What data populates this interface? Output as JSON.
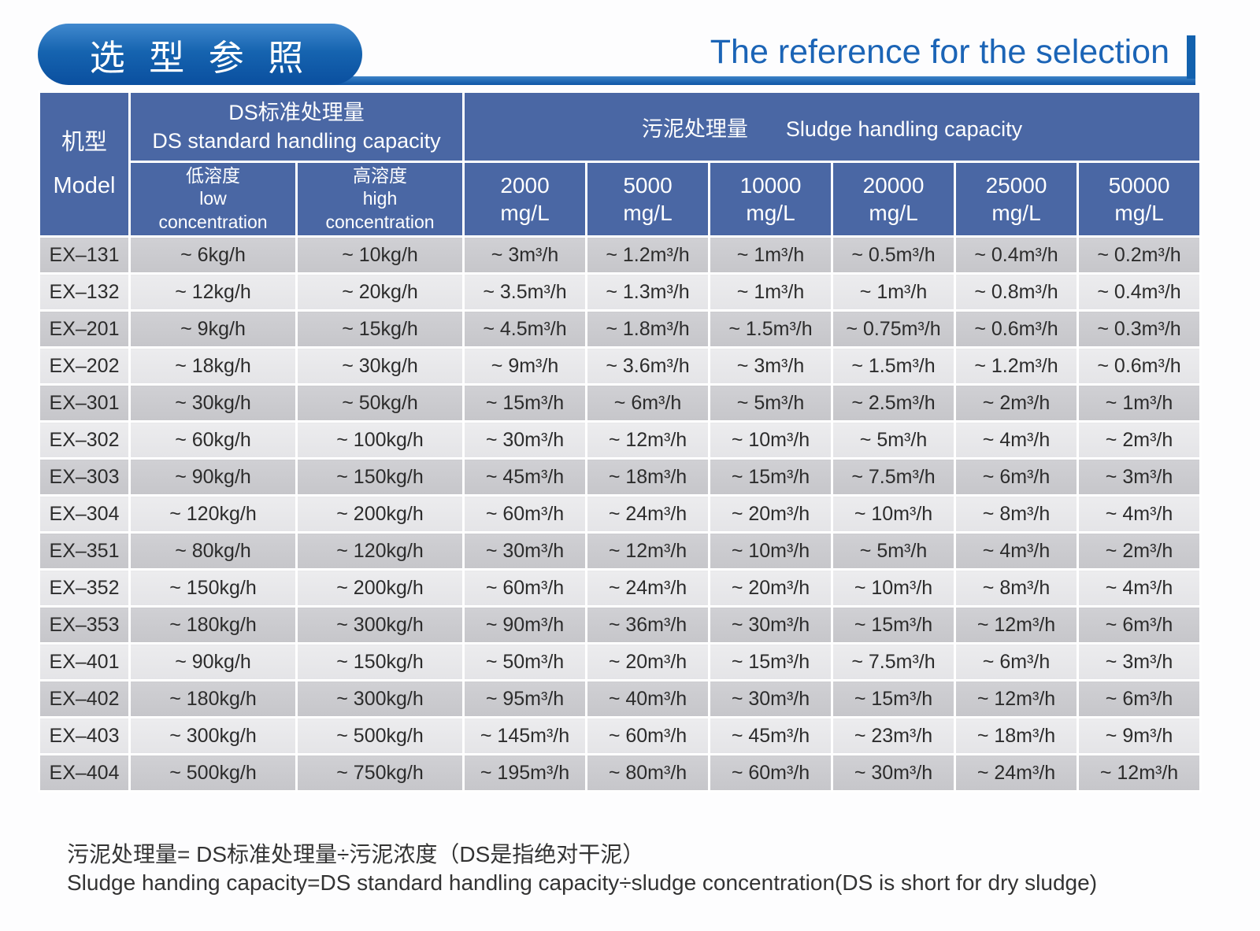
{
  "header": {
    "title_zh": "选 型 参 照",
    "title_en": "The reference for the selection"
  },
  "table": {
    "header": {
      "model_zh": "机型",
      "model_en": "Model",
      "ds_zh": "DS标准处理量",
      "ds_en": "DS standard handling capacity",
      "sludge_zh": "污泥处理量",
      "sludge_en": "Sludge handling capacity",
      "low_zh": "低溶度",
      "low_en1": "low",
      "low_en2": "concentration",
      "high_zh": "高溶度",
      "high_en1": "high",
      "high_en2": "concentration",
      "unit": "mg/L",
      "concentrations": [
        "2000",
        "5000",
        "10000",
        "20000",
        "25000",
        "50000"
      ]
    },
    "rows": [
      {
        "model": "EX–131",
        "low": "~ 6kg/h",
        "high": "~ 10kg/h",
        "values": [
          "~ 3m³/h",
          "~ 1.2m³/h",
          "~ 1m³/h",
          "~ 0.5m³/h",
          "~ 0.4m³/h",
          "~ 0.2m³/h"
        ]
      },
      {
        "model": "EX–132",
        "low": "~ 12kg/h",
        "high": "~ 20kg/h",
        "values": [
          "~ 3.5m³/h",
          "~ 1.3m³/h",
          "~ 1m³/h",
          "~ 1m³/h",
          "~ 0.8m³/h",
          "~ 0.4m³/h"
        ]
      },
      {
        "model": "EX–201",
        "low": "~ 9kg/h",
        "high": "~ 15kg/h",
        "values": [
          "~ 4.5m³/h",
          "~ 1.8m³/h",
          "~ 1.5m³/h",
          "~ 0.75m³/h",
          "~ 0.6m³/h",
          "~ 0.3m³/h"
        ]
      },
      {
        "model": "EX–202",
        "low": "~ 18kg/h",
        "high": "~ 30kg/h",
        "values": [
          "~ 9m³/h",
          "~ 3.6m³/h",
          "~ 3m³/h",
          "~ 1.5m³/h",
          "~ 1.2m³/h",
          "~ 0.6m³/h"
        ]
      },
      {
        "model": "EX–301",
        "low": "~ 30kg/h",
        "high": "~ 50kg/h",
        "values": [
          "~ 15m³/h",
          "~ 6m³/h",
          "~ 5m³/h",
          "~ 2.5m³/h",
          "~ 2m³/h",
          "~ 1m³/h"
        ]
      },
      {
        "model": "EX–302",
        "low": "~ 60kg/h",
        "high": "~ 100kg/h",
        "values": [
          "~ 30m³/h",
          "~ 12m³/h",
          "~ 10m³/h",
          "~ 5m³/h",
          "~ 4m³/h",
          "~ 2m³/h"
        ]
      },
      {
        "model": "EX–303",
        "low": "~ 90kg/h",
        "high": "~ 150kg/h",
        "values": [
          "~ 45m³/h",
          "~ 18m³/h",
          "~ 15m³/h",
          "~ 7.5m³/h",
          "~ 6m³/h",
          "~ 3m³/h"
        ]
      },
      {
        "model": "EX–304",
        "low": "~ 120kg/h",
        "high": "~ 200kg/h",
        "values": [
          "~ 60m³/h",
          "~ 24m³/h",
          "~ 20m³/h",
          "~ 10m³/h",
          "~ 8m³/h",
          "~ 4m³/h"
        ]
      },
      {
        "model": "EX–351",
        "low": "~ 80kg/h",
        "high": "~ 120kg/h",
        "values": [
          "~ 30m³/h",
          "~ 12m³/h",
          "~ 10m³/h",
          "~ 5m³/h",
          "~ 4m³/h",
          "~ 2m³/h"
        ]
      },
      {
        "model": "EX–352",
        "low": "~ 150kg/h",
        "high": "~ 200kg/h",
        "values": [
          "~ 60m³/h",
          "~ 24m³/h",
          "~ 20m³/h",
          "~ 10m³/h",
          "~ 8m³/h",
          "~ 4m³/h"
        ]
      },
      {
        "model": "EX–353",
        "low": "~ 180kg/h",
        "high": "~ 300kg/h",
        "values": [
          "~ 90m³/h",
          "~ 36m³/h",
          "~ 30m³/h",
          "~ 15m³/h",
          "~ 12m³/h",
          "~ 6m³/h"
        ]
      },
      {
        "model": "EX–401",
        "low": "~ 90kg/h",
        "high": "~ 150kg/h",
        "values": [
          "~ 50m³/h",
          "~ 20m³/h",
          "~ 15m³/h",
          "~ 7.5m³/h",
          "~ 6m³/h",
          "~ 3m³/h"
        ]
      },
      {
        "model": "EX–402",
        "low": "~ 180kg/h",
        "high": "~ 300kg/h",
        "values": [
          "~ 95m³/h",
          "~ 40m³/h",
          "~ 30m³/h",
          "~ 15m³/h",
          "~ 12m³/h",
          "~ 6m³/h"
        ]
      },
      {
        "model": "EX–403",
        "low": "~ 300kg/h",
        "high": "~ 500kg/h",
        "values": [
          "~ 145m³/h",
          "~ 60m³/h",
          "~ 45m³/h",
          "~ 23m³/h",
          "~ 18m³/h",
          "~ 9m³/h"
        ]
      },
      {
        "model": "EX–404",
        "low": "~ 500kg/h",
        "high": "~ 750kg/h",
        "values": [
          "~ 195m³/h",
          "~ 80m³/h",
          "~ 60m³/h",
          "~ 30m³/h",
          "~ 24m³/h",
          "~ 12m³/h"
        ]
      }
    ]
  },
  "footnote": {
    "zh": "污泥处理量= DS标准处理量÷污泥浓度（DS是指绝对干泥）",
    "en": "Sludge handing capacity=DS standard handling capacity÷sludge concentration(DS is short for dry sludge)"
  }
}
